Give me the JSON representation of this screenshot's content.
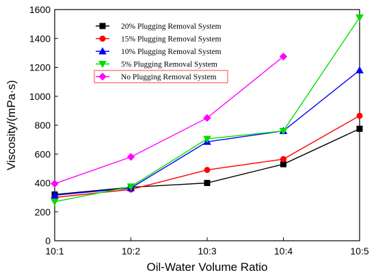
{
  "chart_data": {
    "type": "line",
    "categories": [
      "10:1",
      "10:2",
      "10:3",
      "10:4",
      "10:5"
    ],
    "xlabel": "Oil-Water Volume Ratio",
    "ylabel": "Viscosity/(mPa·s)",
    "ylim": [
      0,
      1600
    ],
    "yticks": [
      0,
      200,
      400,
      600,
      800,
      1000,
      1200,
      1400,
      1600
    ],
    "grid": false,
    "legend_position": "top-left",
    "series": [
      {
        "name": "20% Plugging Removal System",
        "color": "#000000",
        "marker": "square",
        "values": [
          320,
          370,
          400,
          530,
          775
        ]
      },
      {
        "name": "15% Plugging Removal System",
        "color": "#ff0000",
        "marker": "circle",
        "values": [
          300,
          355,
          490,
          565,
          865
        ]
      },
      {
        "name": "10% Plugging Removal System",
        "color": "#0000ff",
        "marker": "triangle-up",
        "values": [
          315,
          365,
          685,
          760,
          1180
        ]
      },
      {
        "name": "5% Plugging Removal System",
        "color": "#00dd00",
        "marker": "triangle-down",
        "values": [
          270,
          375,
          705,
          760,
          1545
        ]
      },
      {
        "name": "No Plugging Removal System",
        "color": "#ff00ff",
        "marker": "diamond",
        "values": [
          395,
          580,
          850,
          1275,
          null
        ]
      }
    ]
  }
}
